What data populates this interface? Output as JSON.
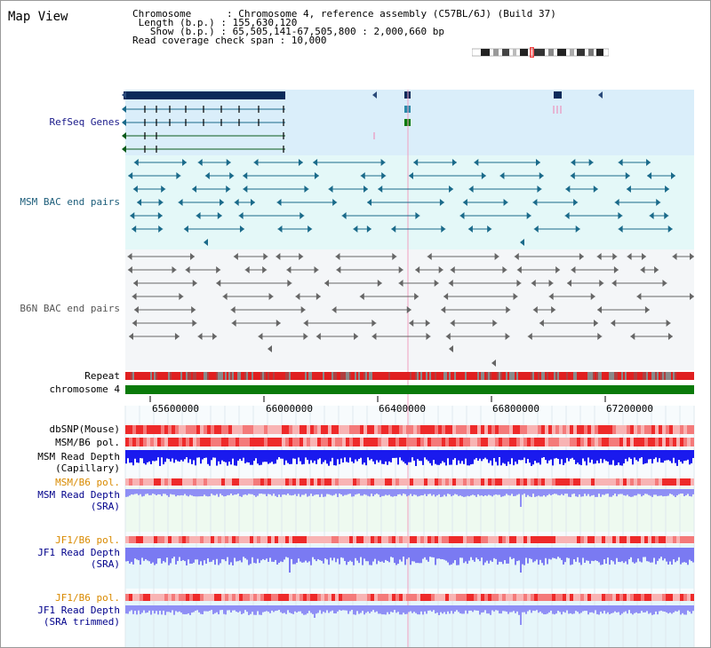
{
  "header": {
    "view_title": "Map View",
    "chromosome_line": "Chromosome      : Chromosome 4, reference assembly (C57BL/6J) (Build 37)",
    "length_line": " Length (b.p.) : 155,630,120",
    "show_line": "   Show (b.p.) : 65,505,141-67,505,800 : 2,000,660 bp",
    "coverage_line": "Read coverage check span : 10,000"
  },
  "track_labels": {
    "refseq": "RefSeq Genes",
    "msm_bac": "MSM BAC end pairs",
    "b6n_bac": "B6N BAC end pairs",
    "repeat": "Repeat",
    "chromosome": "chromosome 4",
    "dbsnp": "dbSNP(Mouse)",
    "msm_b6_pol_1": "MSM/B6 pol.",
    "msm_read_depth_cap_1": "MSM Read Depth",
    "msm_read_depth_cap_2": "(Capillary)",
    "msm_b6_pol_2": "MSM/B6 pol.",
    "msm_read_depth_sra_1": "MSM Read Depth",
    "msm_read_depth_sra_2": "(SRA)",
    "jf1_b6_pol_1": "JF1/B6 pol.",
    "jf1_read_depth_sra_1": "JF1 Read Depth",
    "jf1_read_depth_sra_2": "(SRA)",
    "jf1_b6_pol_2": "JF1/B6 pol.",
    "jf1_read_depth_trim_1": "JF1 Read Depth",
    "jf1_read_depth_trim_2": "(SRA trimmed)"
  },
  "axis": {
    "ticks": [
      "65600000",
      "66000000",
      "66400000",
      "66800000",
      "67200000"
    ]
  },
  "colors": {
    "refseq_bg": "#daeefa",
    "msm_bac_bg": "#e4f8f8",
    "b6n_bac_bg": "#f4f6f8",
    "chromosome_bar": "#0a7a0a",
    "read_depth_blue": "#1a1aee",
    "read_depth_light": "#8f8ff5",
    "polymorphism_red": "#ee2a2a",
    "polymorphism_pink": "#f8b4b4",
    "highlight_line": "#f0a0c0"
  }
}
